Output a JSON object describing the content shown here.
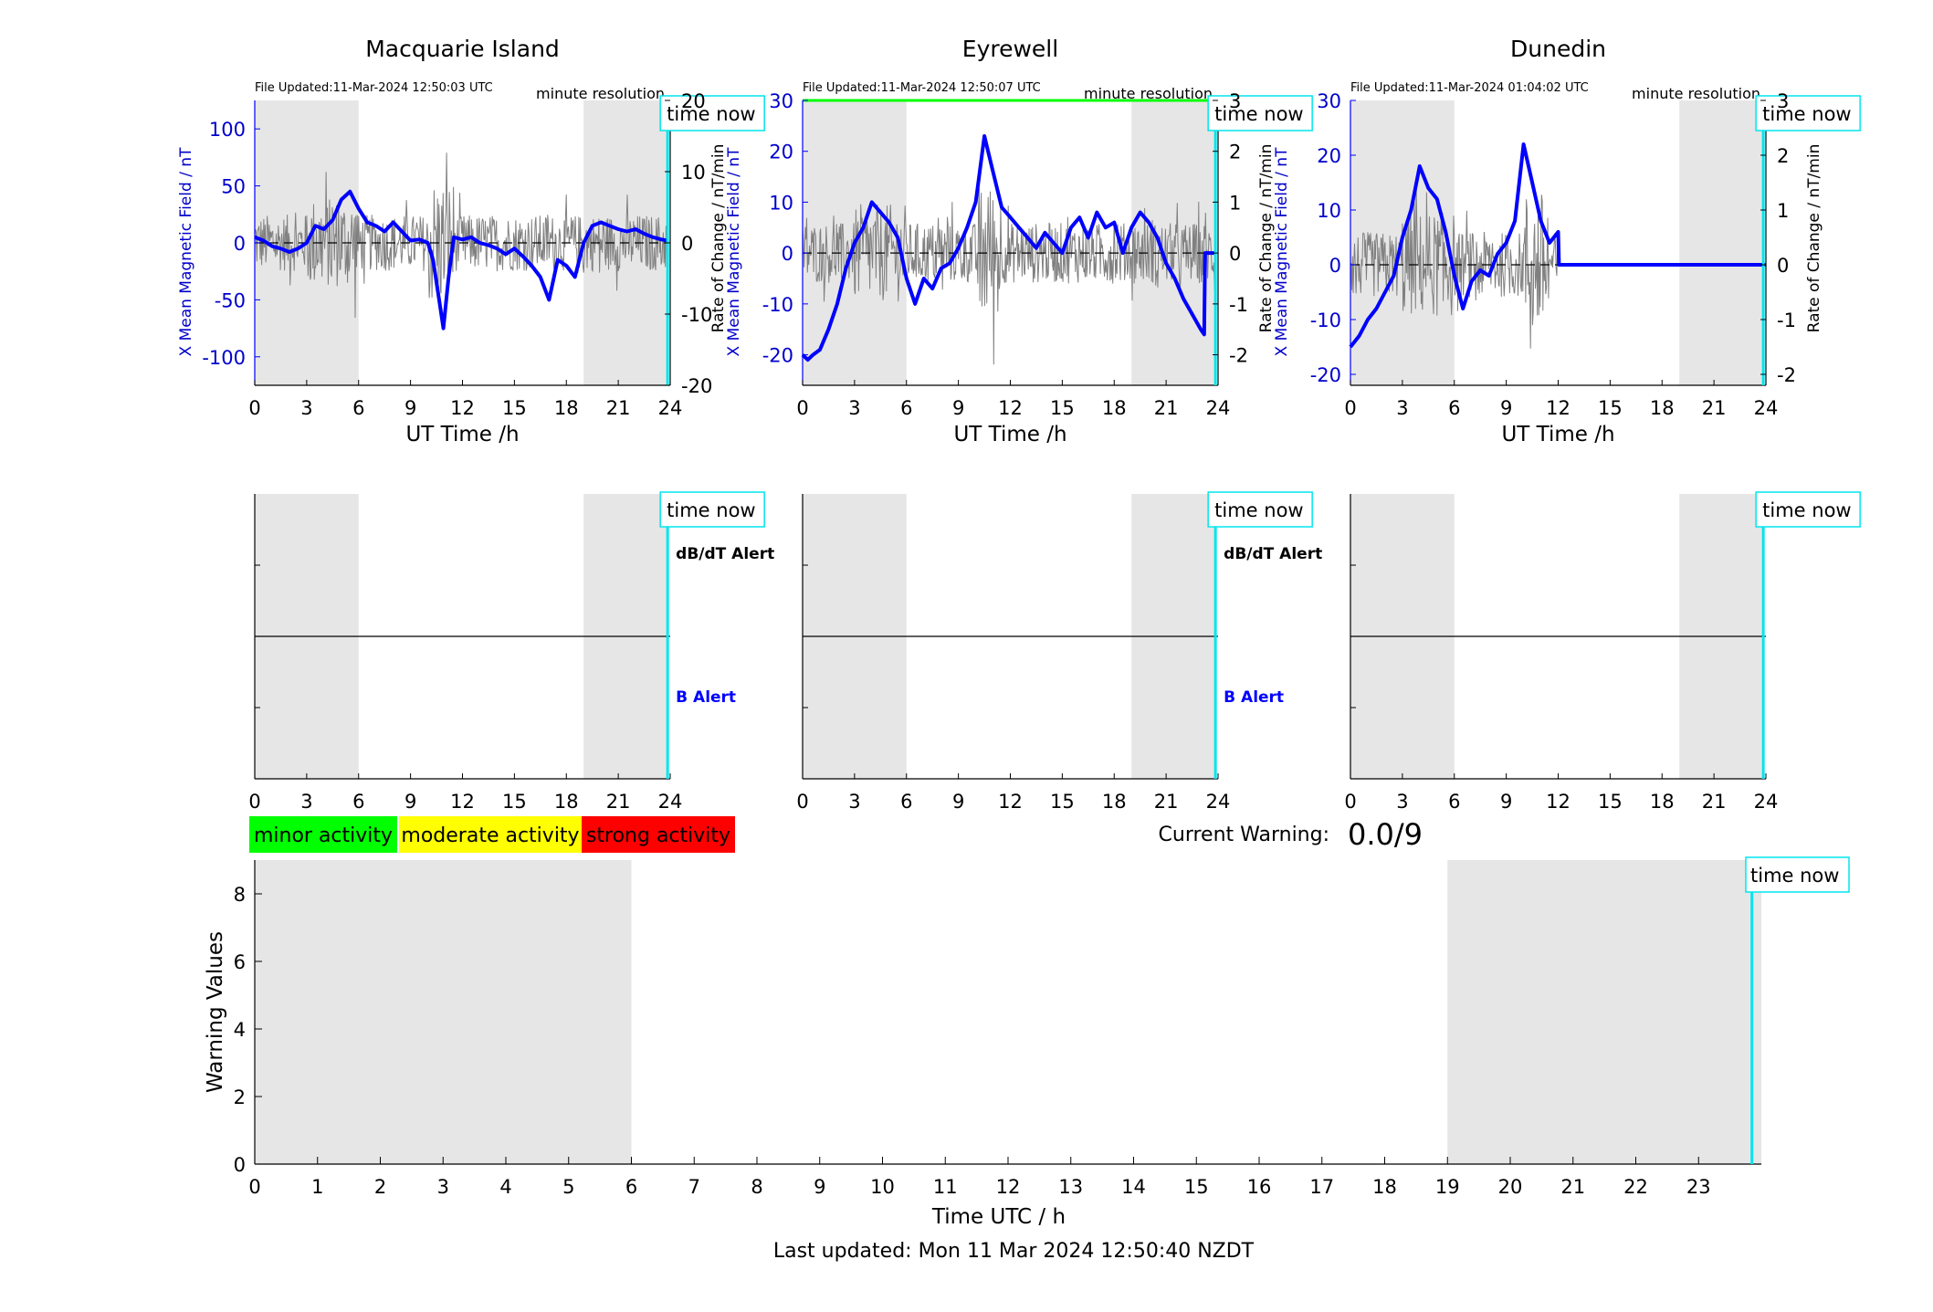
{
  "colors": {
    "b_trace": "#0000ff",
    "rate_trace": "#808080",
    "now_line": "#00e5ee",
    "night_shade": "#e6e6e6",
    "b_axis": "#0000cc",
    "status_green": "#00ff00",
    "minor": "#00ff00",
    "moderate": "#ffff00",
    "strong": "#ff0000"
  },
  "common": {
    "time_now_label": "time now",
    "minute_resolution": "minute resolution",
    "ut_xlabel": "UT Time /h",
    "b_ylabel": "X Mean Magnetic Field / nT",
    "rate_ylabel": "Rate of Change / nT/min",
    "dbdt_alert": "dB/dT Alert",
    "b_alert": "B Alert",
    "hour_ticks": [
      0,
      3,
      6,
      9,
      12,
      15,
      18,
      21,
      24
    ],
    "night_bands_h": [
      [
        0,
        6
      ],
      [
        19,
        24
      ]
    ]
  },
  "stations": [
    {
      "name": "Macquarie Island",
      "file_updated": "File Updated:11-Mar-2024 12:50:03 UTC",
      "b_ylim": [
        -125,
        125
      ],
      "b_ticks": [
        -100,
        -50,
        0,
        50,
        100
      ],
      "rate_ylim": [
        -20,
        20
      ],
      "rate_ticks": [
        -20,
        -10,
        0,
        10,
        20
      ],
      "time_now_h": 23.85,
      "status_bar": false,
      "data_end_h": 23.85,
      "show_alert_labels": true
    },
    {
      "name": "Eyrewell",
      "file_updated": "File Updated:11-Mar-2024 12:50:07 UTC",
      "b_ylim": [
        -26,
        30
      ],
      "b_ticks": [
        -20,
        -10,
        0,
        10,
        20,
        30
      ],
      "rate_ylim": [
        -2.6,
        3
      ],
      "rate_ticks": [
        -2,
        -1,
        0,
        1,
        2,
        3
      ],
      "time_now_h": 23.85,
      "status_bar": true,
      "data_end_h": 23.85,
      "show_alert_labels": true
    },
    {
      "name": "Dunedin",
      "file_updated": "File Updated:11-Mar-2024 01:04:02 UTC",
      "b_ylim": [
        -22,
        30
      ],
      "b_ticks": [
        -20,
        -10,
        0,
        10,
        20,
        30
      ],
      "rate_ylim": [
        -2.2,
        3
      ],
      "rate_ticks": [
        -2,
        -1,
        0,
        1,
        2,
        3
      ],
      "time_now_h": 23.85,
      "status_bar": false,
      "data_end_h": 12.0,
      "show_alert_labels": false
    }
  ],
  "chart_data": [
    {
      "type": "line",
      "title": "Macquarie Island",
      "xlabel": "UT Time /h",
      "ylabel": "X Mean Magnetic Field / nT",
      "y2label": "Rate of Change / nT/min",
      "xlim": [
        0,
        24
      ],
      "ylim": [
        -125,
        125
      ],
      "series": [
        {
          "name": "X Mean Magnetic Field / nT",
          "x": [
            0,
            0.5,
            1,
            1.5,
            2,
            2.5,
            3,
            3.5,
            4,
            4.5,
            5,
            5.5,
            6,
            6.5,
            7,
            7.5,
            8,
            8.5,
            9,
            9.5,
            10,
            10.3,
            10.6,
            10.9,
            11.2,
            11.5,
            12,
            12.5,
            13,
            13.5,
            14,
            14.5,
            15,
            15.5,
            16,
            16.5,
            17,
            17.5,
            18,
            18.5,
            19,
            19.5,
            20,
            20.5,
            21,
            21.5,
            22,
            22.5,
            23,
            23.5,
            23.85
          ],
          "y": [
            5,
            2,
            -3,
            -5,
            -8,
            -5,
            0,
            15,
            12,
            20,
            38,
            45,
            30,
            18,
            15,
            10,
            18,
            10,
            2,
            3,
            0,
            -15,
            -45,
            -75,
            -30,
            5,
            3,
            5,
            0,
            -2,
            -5,
            -10,
            -5,
            -12,
            -20,
            -30,
            -50,
            -15,
            -20,
            -30,
            0,
            15,
            18,
            15,
            12,
            10,
            12,
            8,
            5,
            3,
            2
          ]
        }
      ]
    },
    {
      "type": "line",
      "title": "Eyrewell",
      "xlabel": "UT Time /h",
      "ylabel": "X Mean Magnetic Field / nT",
      "y2label": "Rate of Change / nT/min",
      "xlim": [
        0,
        24
      ],
      "ylim": [
        -26,
        30
      ],
      "series": [
        {
          "name": "X Mean Magnetic Field / nT",
          "x": [
            0,
            0.3,
            0.6,
            1,
            1.5,
            2,
            2.5,
            3,
            3.5,
            4,
            4.5,
            5,
            5.5,
            6,
            6.5,
            7,
            7.5,
            8,
            8.5,
            9,
            9.5,
            10,
            10.5,
            11,
            11.5,
            12,
            12.5,
            13,
            13.5,
            14,
            14.5,
            15,
            15.5,
            16,
            16.5,
            17,
            17.5,
            18,
            18.5,
            19,
            19.5,
            20,
            20.5,
            21,
            21.5,
            22,
            22.5,
            23,
            23.2,
            23.25,
            23.85
          ],
          "y": [
            -20,
            -21,
            -20,
            -19,
            -15,
            -10,
            -3,
            2,
            5,
            10,
            8,
            6,
            3,
            -5,
            -10,
            -5,
            -7,
            -3,
            -2,
            1,
            5,
            10,
            23,
            16,
            9,
            7,
            5,
            3,
            1,
            4,
            2,
            0,
            5,
            7,
            3,
            8,
            5,
            6,
            0,
            5,
            8,
            6,
            3,
            -2,
            -5,
            -9,
            -12,
            -15,
            -16,
            0,
            0
          ]
        }
      ]
    },
    {
      "type": "line",
      "title": "Dunedin",
      "xlabel": "UT Time /h",
      "ylabel": "X Mean Magnetic Field / nT",
      "y2label": "Rate of Change / nT/min",
      "xlim": [
        0,
        24
      ],
      "ylim": [
        -22,
        30
      ],
      "series": [
        {
          "name": "X Mean Magnetic Field / nT",
          "x": [
            0,
            0.5,
            1,
            1.5,
            2,
            2.5,
            3,
            3.5,
            4,
            4.5,
            5,
            5.5,
            6,
            6.5,
            7,
            7.5,
            8,
            8.5,
            9,
            9.5,
            10,
            10.5,
            11,
            11.5,
            12,
            12.05,
            13,
            15,
            18,
            21,
            24
          ],
          "y": [
            -15,
            -13,
            -10,
            -8,
            -5,
            -2,
            5,
            10,
            18,
            14,
            12,
            6,
            -2,
            -8,
            -3,
            -1,
            -2,
            2,
            4,
            8,
            22,
            15,
            8,
            4,
            6,
            0,
            0,
            0,
            0,
            0,
            0
          ]
        }
      ]
    },
    {
      "type": "line",
      "title": "",
      "xlabel": "Time UTC / h",
      "ylabel": "Warning Values",
      "xlim": [
        0,
        24
      ],
      "ylim": [
        0,
        9
      ],
      "x_ticks": [
        0,
        1,
        2,
        3,
        4,
        5,
        6,
        7,
        8,
        9,
        10,
        11,
        12,
        13,
        14,
        15,
        16,
        17,
        18,
        19,
        20,
        21,
        22,
        23
      ],
      "y_ticks": [
        0,
        2,
        4,
        6,
        8
      ],
      "series": [
        {
          "name": "Warning Values",
          "x": [
            0,
            23.85
          ],
          "y": [
            0,
            0
          ]
        }
      ]
    }
  ],
  "legend": {
    "minor": "minor activity",
    "moderate": "moderate activity",
    "strong": "strong activity"
  },
  "current_warning": {
    "label": "Current Warning:",
    "value": "0.0/9"
  },
  "warning_panel": {
    "xlabel": "Time UTC / h",
    "ylabel": "Warning Values",
    "x_ticks": [
      0,
      1,
      2,
      3,
      4,
      5,
      6,
      7,
      8,
      9,
      10,
      11,
      12,
      13,
      14,
      15,
      16,
      17,
      18,
      19,
      20,
      21,
      22,
      23
    ],
    "y_ticks": [
      0,
      2,
      4,
      6,
      8
    ],
    "ylim": [
      0,
      9
    ],
    "xlim": [
      0,
      24
    ],
    "night_bands_h": [
      [
        0,
        6
      ],
      [
        19,
        24
      ]
    ],
    "time_now_h": 23.85
  },
  "footer": {
    "last_updated": "Last updated: Mon 11 Mar 2024 12:50:40 NZDT"
  }
}
